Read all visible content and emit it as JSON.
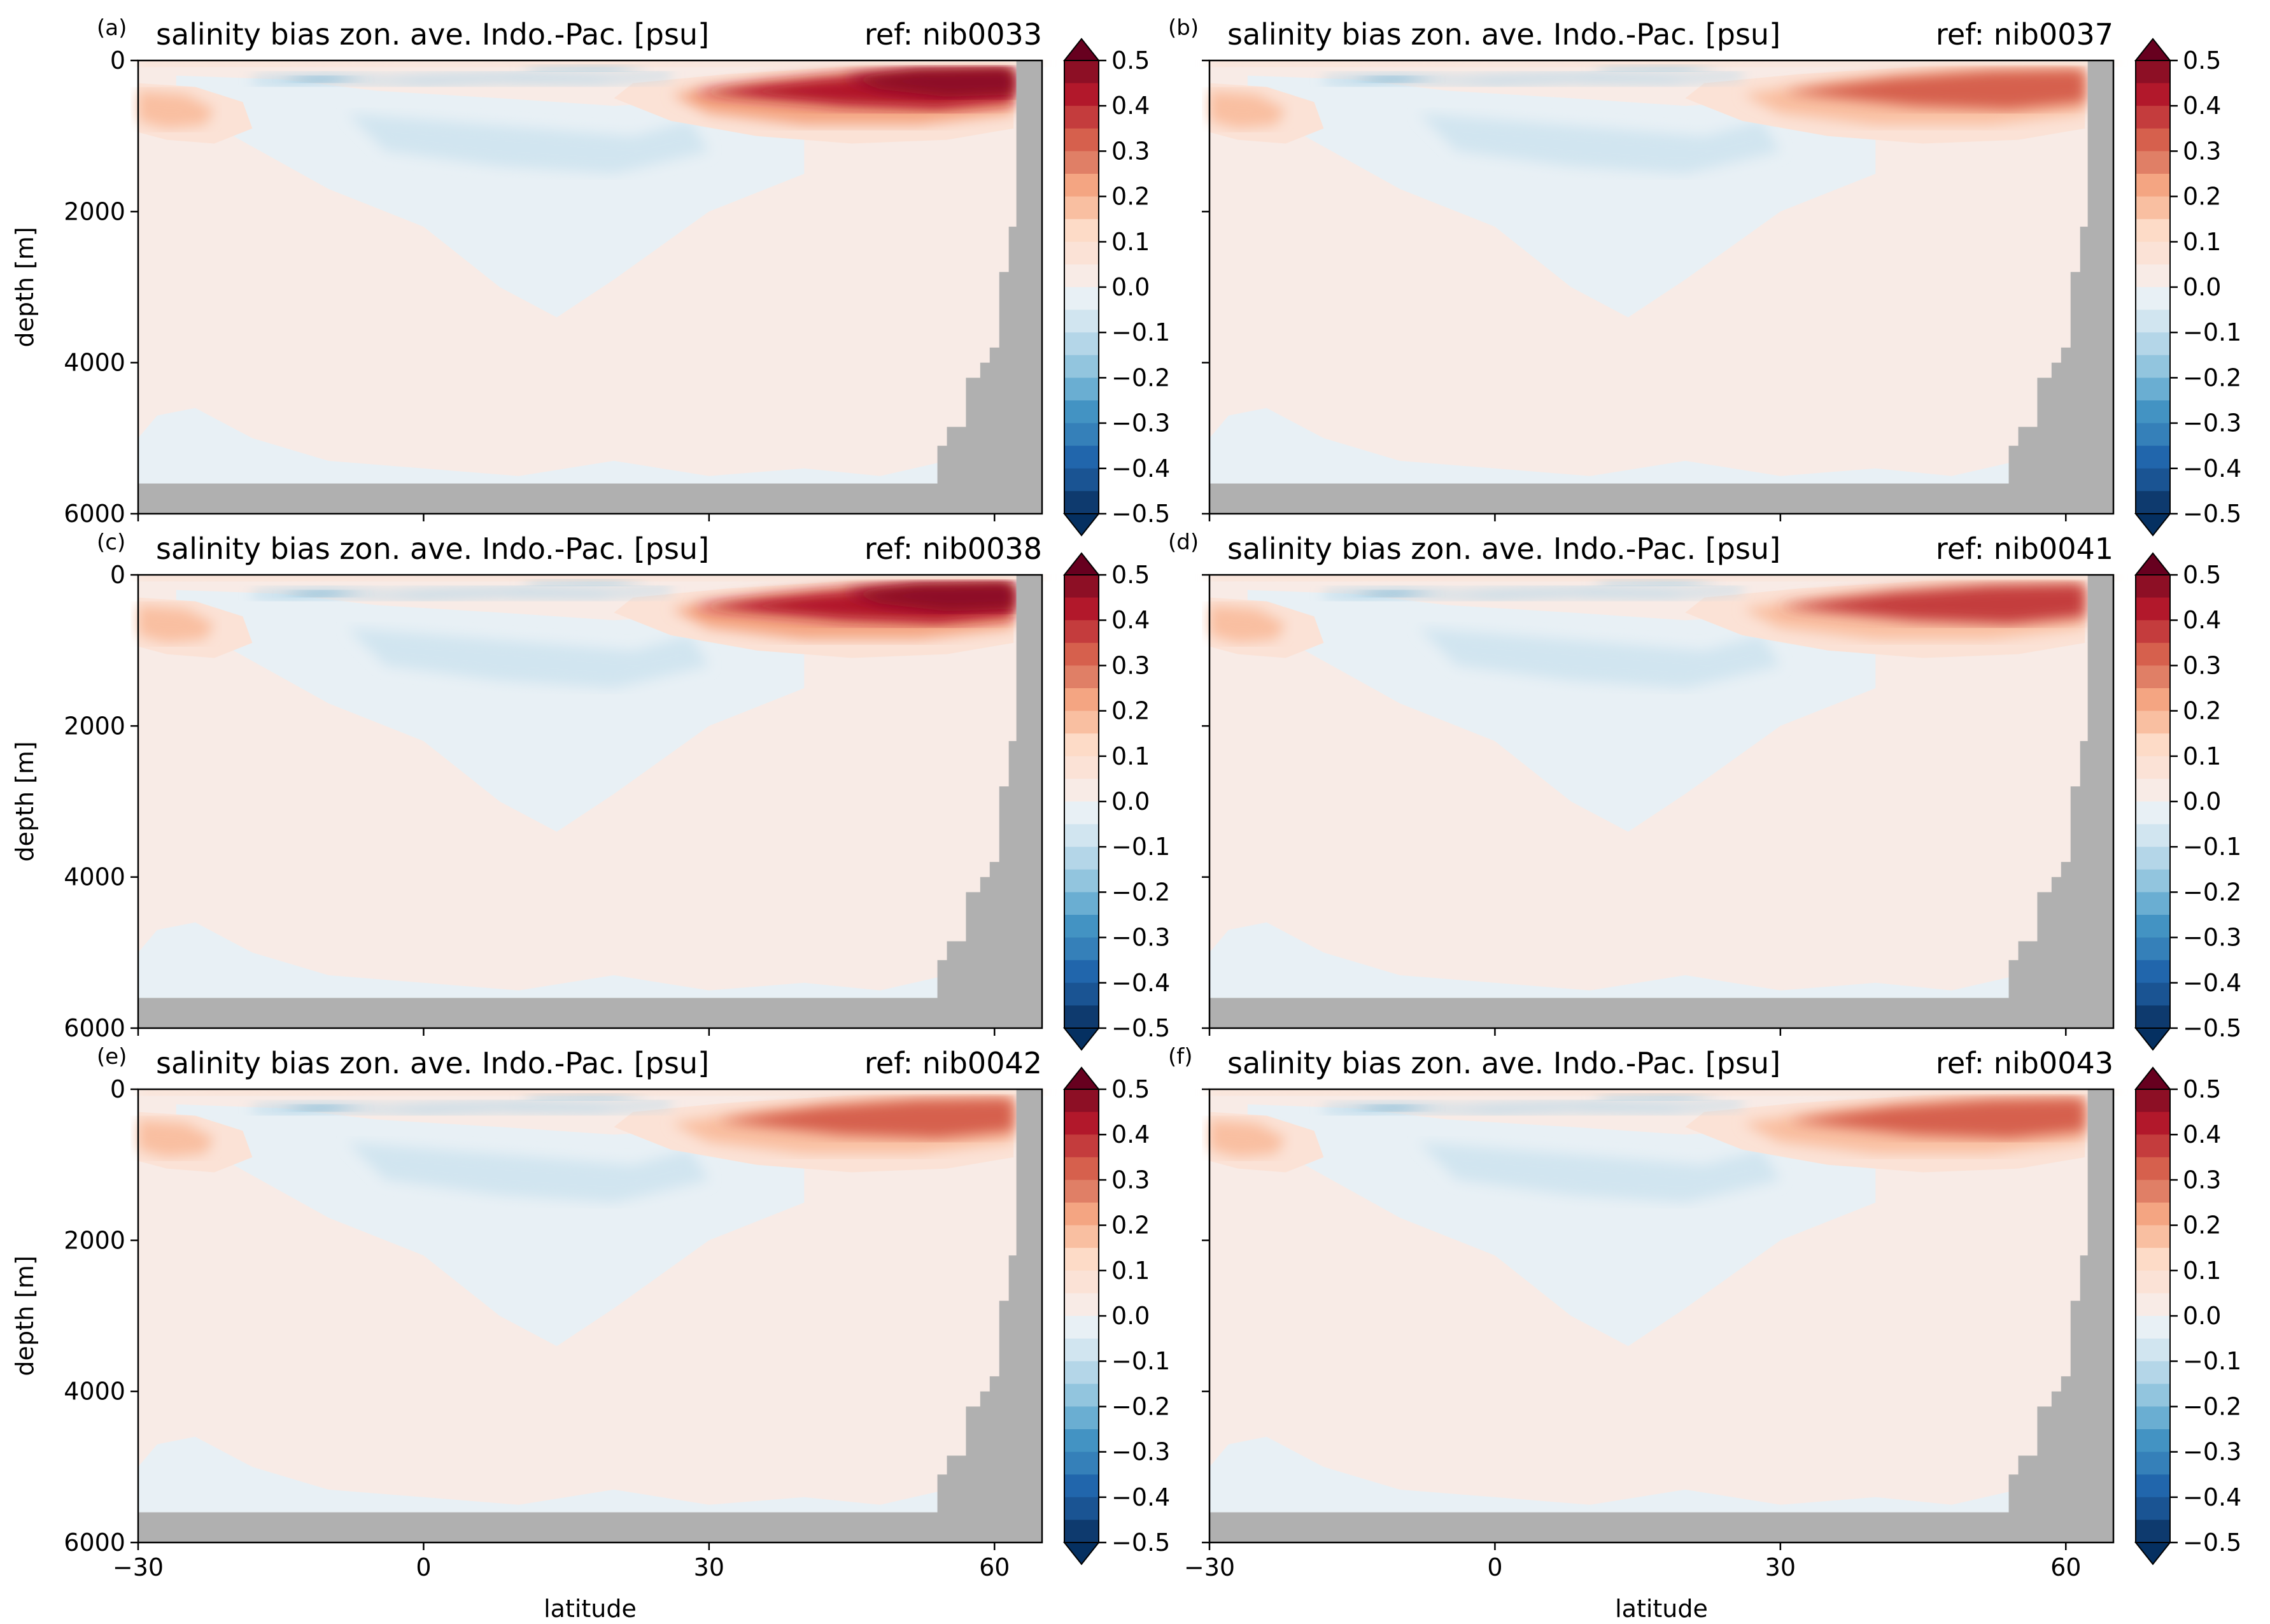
{
  "figure": {
    "panels": [
      {
        "letter": "(a)",
        "title": "salinity bias zon. ave. Indo.-Pac. [psu]",
        "ref": "ref: nib0033"
      },
      {
        "letter": "(b)",
        "title": "salinity bias zon. ave. Indo.-Pac. [psu]",
        "ref": "ref: nib0037"
      },
      {
        "letter": "(c)",
        "title": "salinity bias zon. ave. Indo.-Pac. [psu]",
        "ref": "ref: nib0038"
      },
      {
        "letter": "(d)",
        "title": "salinity bias zon. ave. Indo.-Pac. [psu]",
        "ref": "ref: nib0041"
      },
      {
        "letter": "(e)",
        "title": "salinity bias zon. ave. Indo.-Pac. [psu]",
        "ref": "ref: nib0042"
      },
      {
        "letter": "(f)",
        "title": "salinity bias zon. ave. Indo.-Pac. [psu]",
        "ref": "ref: nib0043"
      }
    ]
  },
  "chart_data": {
    "type": "heatmap",
    "xlabel": "latitude",
    "ylabel": "depth [m]",
    "xlim": [
      -30,
      65
    ],
    "ylim": [
      6000,
      0
    ],
    "x_ticks": [
      "−30",
      "0",
      "30",
      "60"
    ],
    "y_ticks": [
      "0",
      "2000",
      "4000",
      "6000"
    ],
    "colorbar": {
      "ticks": [
        "0.5",
        "0.4",
        "0.3",
        "0.2",
        "0.1",
        "0.0",
        "−0.1",
        "−0.2",
        "−0.3",
        "−0.4",
        "−0.5"
      ],
      "range": [
        -0.5,
        0.5
      ],
      "levels": 20,
      "extend": "both",
      "colormap": "RdBu_r",
      "colors": [
        "#0e3a6e",
        "#1a5493",
        "#2166ac",
        "#3580b9",
        "#4393c3",
        "#6aaed2",
        "#92c5de",
        "#b4d6e8",
        "#d1e5f0",
        "#e8f0f5",
        "#f8ebe6",
        "#fbe2d6",
        "#fddbc7",
        "#f9bfa1",
        "#f4a582",
        "#e07f66",
        "#d6604d",
        "#c43c3d",
        "#b2182b",
        "#8d0f25"
      ],
      "under": "#053061",
      "over": "#67001f"
    },
    "land_color": "#b0b0b0",
    "panels": [
      {
        "ref": "nib0033",
        "shallow_max_anomaly": 0.55,
        "north_surface_bias": "strong positive",
        "intermediate_mean": -0.05,
        "deep_mean": 0.02
      },
      {
        "ref": "nib0037",
        "shallow_max_anomaly": 0.35,
        "north_surface_bias": "moderate positive",
        "intermediate_mean": -0.05,
        "deep_mean": 0.01
      },
      {
        "ref": "nib0038",
        "shallow_max_anomaly": 0.55,
        "north_surface_bias": "strong positive",
        "intermediate_mean": -0.05,
        "deep_mean": 0.02
      },
      {
        "ref": "nib0041",
        "shallow_max_anomaly": 0.4,
        "north_surface_bias": "moderate positive",
        "intermediate_mean": -0.07,
        "deep_mean": 0.01
      },
      {
        "ref": "nib0042",
        "shallow_max_anomaly": 0.3,
        "north_surface_bias": "weak positive",
        "intermediate_mean": -0.05,
        "deep_mean": 0.01
      },
      {
        "ref": "nib0043",
        "shallow_max_anomaly": 0.3,
        "north_surface_bias": "weak positive",
        "intermediate_mean": -0.05,
        "deep_mean": 0.01
      }
    ]
  }
}
